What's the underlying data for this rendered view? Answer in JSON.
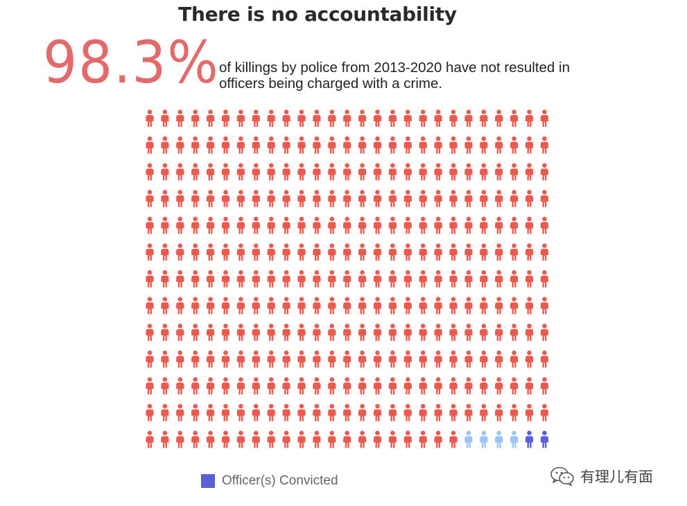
{
  "title": "There is no accountability",
  "stat": {
    "value": "98.3%",
    "text": "of killings by police from 2013-2020 have not resulted in officers being charged with a crime."
  },
  "legend": {
    "label": "Officer(s) Convicted",
    "color": "#5a5fd8"
  },
  "watermark": {
    "text": "有理儿有面",
    "icon": "wechat-icon"
  },
  "chart_data": {
    "type": "pictograph",
    "icon": "person-icon",
    "rows": 13,
    "columns": 27,
    "total_icons": 351,
    "categories": [
      {
        "key": "not_charged",
        "count": 345,
        "color": "#ea5a4f"
      },
      {
        "key": "charged",
        "count": 4,
        "color": "#9cc3f2"
      },
      {
        "key": "convicted",
        "name": "Officer(s) Convicted",
        "count": 2,
        "color": "#5a5fd8"
      }
    ],
    "legend_position": "bottom-left"
  }
}
